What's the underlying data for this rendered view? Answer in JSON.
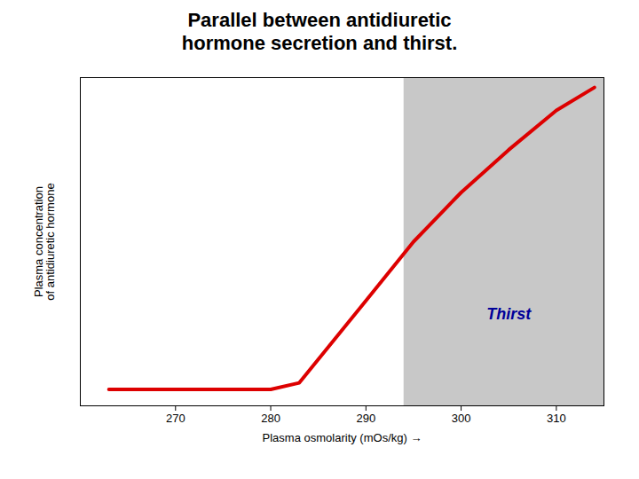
{
  "chart_data": {
    "type": "line",
    "title": "Parallel between antidiuretic\nhormone secretion and thirst.",
    "xlabel": "Plasma osmolarity (mOs/kg)",
    "ylabel": "Plasma concentration\nof antidiuretic hormone",
    "x": [
      263,
      270,
      280,
      283,
      290,
      295,
      300,
      305,
      310,
      314
    ],
    "values": [
      0.5,
      0.5,
      0.5,
      0.7,
      3.2,
      5.0,
      6.5,
      7.8,
      9.0,
      9.7
    ],
    "color": "#dd0000",
    "xlim": [
      260,
      315
    ],
    "ylim": [
      0,
      10
    ],
    "xticks": [
      270,
      280,
      290,
      300,
      310
    ],
    "yticks": [],
    "tick_labels": "x",
    "grid": false,
    "span": {
      "x": [
        294,
        315
      ],
      "color": "#c8c8c8"
    },
    "annotations": [
      {
        "text": "Thirst",
        "x": 305,
        "y": 2.8,
        "color": "#000099"
      }
    ]
  }
}
